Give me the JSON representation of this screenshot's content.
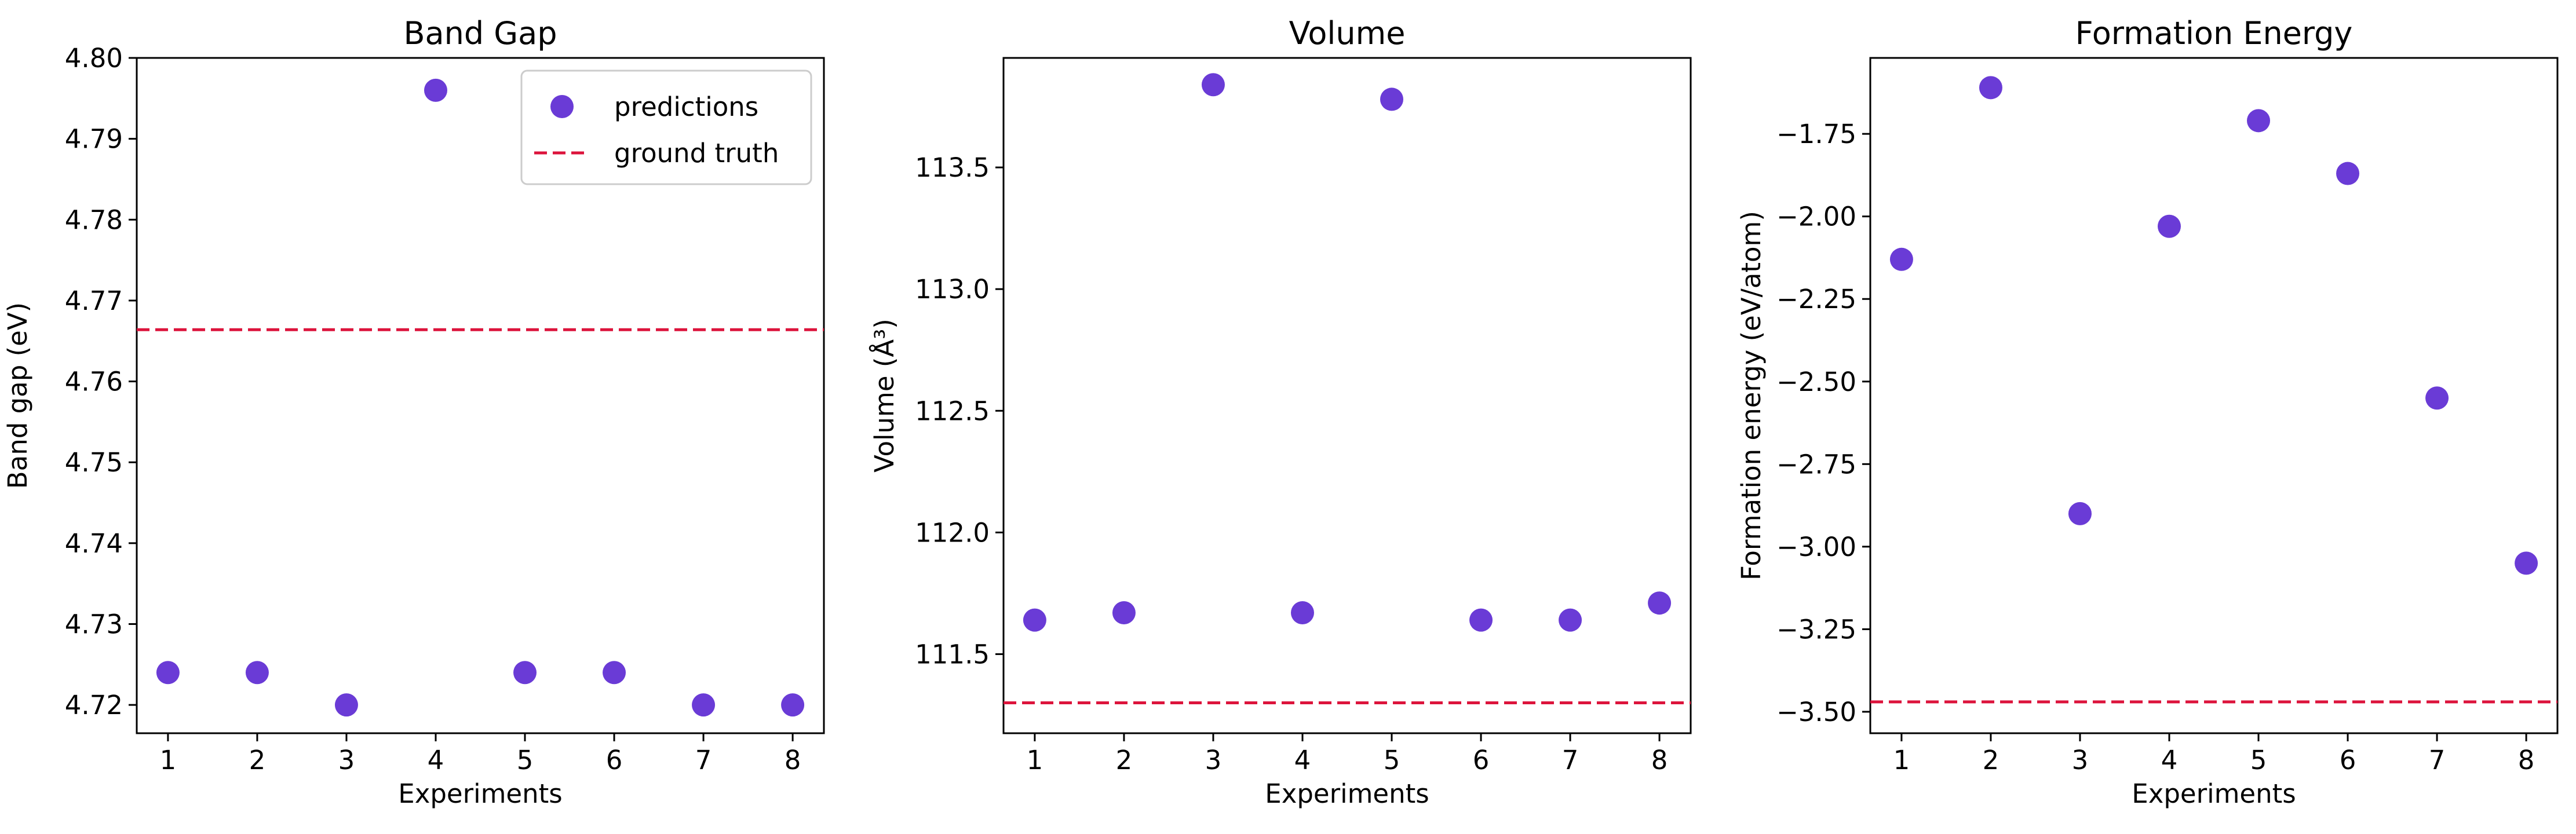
{
  "colors": {
    "points": "#6a3bd6",
    "truth_line": "#dc143c",
    "axes": "#000000"
  },
  "chart_data": [
    {
      "type": "scatter",
      "title": "Band Gap",
      "xlabel": "Experiments",
      "ylabel": "Band gap (eV)",
      "x": [
        1,
        2,
        3,
        4,
        5,
        6,
        7,
        8
      ],
      "series": [
        {
          "name": "predictions",
          "values": [
            4.724,
            4.724,
            4.72,
            4.796,
            4.724,
            4.724,
            4.72,
            4.72
          ]
        }
      ],
      "ground_truth": {
        "name": "ground truth",
        "value": 4.7664
      },
      "xlim": [
        0.65,
        8.35
      ],
      "ylim": [
        4.7165,
        4.8
      ],
      "yticks": [
        4.72,
        4.73,
        4.74,
        4.75,
        4.76,
        4.77,
        4.78,
        4.79,
        4.8
      ],
      "ytick_labels": [
        "4.72",
        "4.73",
        "4.74",
        "4.75",
        "4.76",
        "4.77",
        "4.78",
        "4.79",
        "4.80"
      ],
      "xticks": [
        1,
        2,
        3,
        4,
        5,
        6,
        7,
        8
      ],
      "legend": "top-right",
      "grid": false
    },
    {
      "type": "scatter",
      "title": "Volume",
      "xlabel": "Experiments",
      "ylabel": "Volume (Å³)",
      "x": [
        1,
        2,
        3,
        4,
        5,
        6,
        7,
        8
      ],
      "series": [
        {
          "name": "predictions",
          "values": [
            111.64,
            111.67,
            113.84,
            111.67,
            113.78,
            111.64,
            111.64,
            111.71
          ]
        }
      ],
      "ground_truth": {
        "name": "ground truth",
        "value": 111.3
      },
      "xlim": [
        0.65,
        8.35
      ],
      "ylim": [
        111.175,
        113.95
      ],
      "yticks": [
        111.5,
        112.0,
        112.5,
        113.0,
        113.5
      ],
      "ytick_labels": [
        "111.5",
        "112.0",
        "112.5",
        "113.0",
        "113.5"
      ],
      "xticks": [
        1,
        2,
        3,
        4,
        5,
        6,
        7,
        8
      ],
      "grid": false
    },
    {
      "type": "scatter",
      "title": "Formation Energy",
      "xlabel": "Experiments",
      "ylabel": "Formation energy (eV/atom)",
      "x": [
        1,
        2,
        3,
        4,
        5,
        6,
        7,
        8
      ],
      "series": [
        {
          "name": "predictions",
          "values": [
            -2.13,
            -1.61,
            -2.9,
            -2.03,
            -1.71,
            -1.87,
            -2.55,
            -3.05
          ]
        }
      ],
      "ground_truth": {
        "name": "ground truth",
        "value": -3.47
      },
      "xlim": [
        0.65,
        8.35
      ],
      "ylim": [
        -3.565,
        -1.52
      ],
      "yticks": [
        -3.5,
        -3.25,
        -3.0,
        -2.75,
        -2.5,
        -2.25,
        -2.0,
        -1.75
      ],
      "ytick_labels": [
        "−3.50",
        "−3.25",
        "−3.00",
        "−2.75",
        "−2.50",
        "−2.25",
        "−2.00",
        "−1.75"
      ],
      "xticks": [
        1,
        2,
        3,
        4,
        5,
        6,
        7,
        8
      ],
      "grid": false
    }
  ]
}
